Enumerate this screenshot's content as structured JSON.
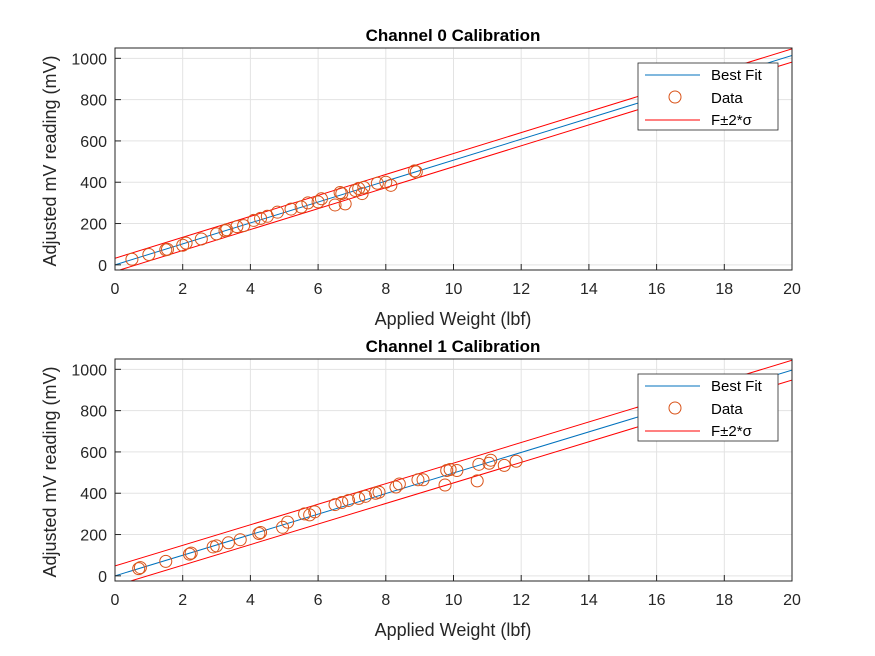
{
  "chart_data": [
    {
      "type": "scatter",
      "title": "Channel 0 Calibration",
      "xlabel": "Applied Weight (lbf)",
      "ylabel": "Adjusted mV reading (mV)",
      "xlim": [
        0,
        20
      ],
      "ylim": [
        -25,
        1050
      ],
      "xticks": [
        0,
        2,
        4,
        6,
        8,
        10,
        12,
        14,
        16,
        18,
        20
      ],
      "yticks": [
        0,
        200,
        400,
        600,
        800,
        1000
      ],
      "grid": true,
      "legend": {
        "location": "top-right",
        "entries": [
          "Best Fit",
          "Data",
          "F±2*σ"
        ]
      },
      "best_fit": {
        "slope": 50.7,
        "intercept": 0,
        "sigma_band": 16
      },
      "series": [
        {
          "name": "Data",
          "marker": "circle",
          "x": [
            0.5,
            1.0,
            1.5,
            1.55,
            2.0,
            2.1,
            2.55,
            3.0,
            3.25,
            3.3,
            3.6,
            3.8,
            4.1,
            4.3,
            4.5,
            4.8,
            5.2,
            5.5,
            5.7,
            6.0,
            6.1,
            6.5,
            6.65,
            6.7,
            6.8,
            7.1,
            7.2,
            7.3,
            7.35,
            7.75,
            8.0,
            8.15,
            8.85,
            8.9
          ],
          "y": [
            27,
            50,
            73,
            75,
            95,
            105,
            125,
            150,
            165,
            170,
            185,
            190,
            215,
            225,
            235,
            255,
            270,
            280,
            300,
            305,
            320,
            290,
            350,
            345,
            295,
            360,
            370,
            345,
            375,
            395,
            400,
            385,
            455,
            450
          ]
        },
        {
          "name": "Best Fit",
          "type": "line",
          "x": [
            0,
            20
          ],
          "y": [
            0,
            1014
          ]
        }
      ],
      "colors": {
        "best_fit": "#0072BD",
        "data": "#D95319",
        "band": "#FF0000"
      }
    },
    {
      "type": "scatter",
      "title": "Channel 1 Calibration",
      "xlabel": "Applied Weight (lbf)",
      "ylabel": "Adjusted mV reading (mV)",
      "xlim": [
        0,
        20
      ],
      "ylim": [
        -25,
        1050
      ],
      "xticks": [
        0,
        2,
        4,
        6,
        8,
        10,
        12,
        14,
        16,
        18,
        20
      ],
      "yticks": [
        0,
        200,
        400,
        600,
        800,
        1000
      ],
      "grid": true,
      "legend": {
        "location": "top-right",
        "entries": [
          "Best Fit",
          "Data",
          "F±2*σ"
        ]
      },
      "best_fit": {
        "slope": 49.8,
        "intercept": 0,
        "sigma_band": 24
      },
      "series": [
        {
          "name": "Data",
          "marker": "circle",
          "x": [
            0.7,
            0.75,
            1.5,
            2.2,
            2.25,
            2.9,
            3.0,
            3.35,
            3.7,
            4.25,
            4.3,
            4.95,
            5.1,
            5.6,
            5.75,
            5.9,
            6.5,
            6.7,
            6.9,
            7.2,
            7.4,
            7.7,
            7.8,
            8.3,
            8.4,
            8.95,
            9.1,
            9.75,
            9.8,
            9.9,
            10.1,
            10.7,
            10.75,
            11.05,
            11.1,
            11.5,
            11.85
          ],
          "y": [
            35,
            40,
            70,
            105,
            110,
            140,
            145,
            160,
            175,
            205,
            210,
            235,
            260,
            300,
            295,
            310,
            345,
            355,
            365,
            375,
            385,
            400,
            405,
            430,
            445,
            465,
            465,
            440,
            510,
            515,
            510,
            460,
            540,
            545,
            560,
            535,
            555
          ]
        },
        {
          "name": "Best Fit",
          "type": "line",
          "x": [
            0,
            20
          ],
          "y": [
            0,
            996
          ]
        }
      ],
      "colors": {
        "best_fit": "#0072BD",
        "data": "#D95319",
        "band": "#FF0000"
      }
    }
  ]
}
